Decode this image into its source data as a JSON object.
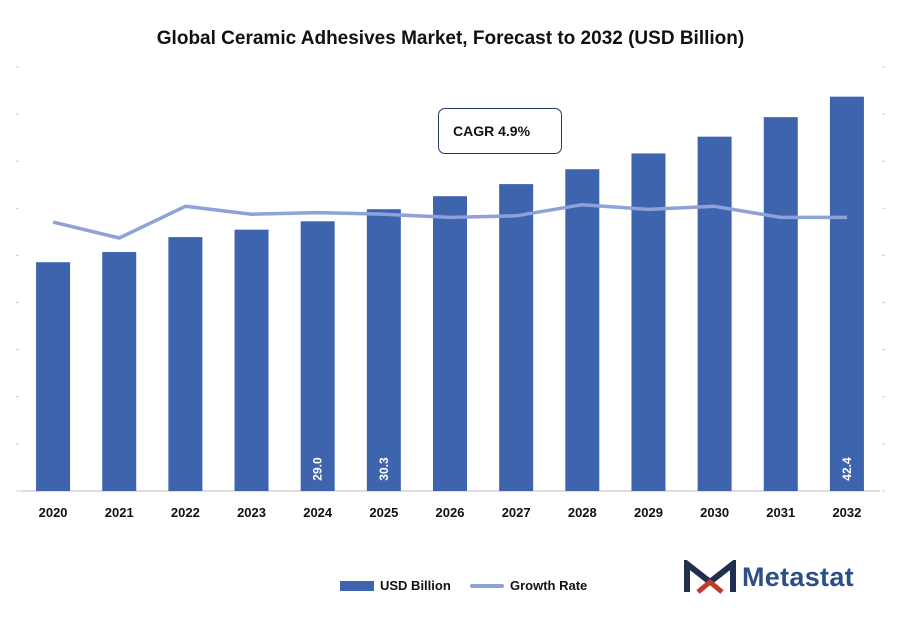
{
  "chart_data": {
    "title": "Global Ceramic Adhesives Market, Forecast to 2032 (USD Billion)",
    "type": "bar+line",
    "categories": [
      "2020",
      "2021",
      "2022",
      "2023",
      "2024",
      "2025",
      "2026",
      "2027",
      "2028",
      "2029",
      "2030",
      "2031",
      "2032"
    ],
    "series": [
      {
        "name": "USD Billion",
        "type": "bar",
        "color": "#3d64ad",
        "values": [
          24.6,
          25.7,
          27.3,
          28.1,
          29.0,
          30.3,
          31.7,
          33.0,
          34.6,
          36.3,
          38.1,
          40.2,
          42.4
        ],
        "labels": [
          "",
          "",
          "",
          "",
          "29.0",
          "30.3",
          "",
          "",
          "",
          "",
          "",
          "",
          "42.4"
        ]
      },
      {
        "name": "Growth Rate",
        "type": "line",
        "color": "#8ea1d8",
        "values": [
          3.8,
          2.8,
          4.8,
          4.3,
          4.4,
          4.3,
          4.1,
          4.2,
          4.9,
          4.6,
          4.8,
          4.1,
          4.1
        ]
      }
    ],
    "annotation": "CAGR 4.9%",
    "legend_position": "bottom",
    "grid": false
  },
  "brand": {
    "name": "Metastat",
    "color": "#2c4f86",
    "icon": "metastat-m-logo-icon"
  }
}
